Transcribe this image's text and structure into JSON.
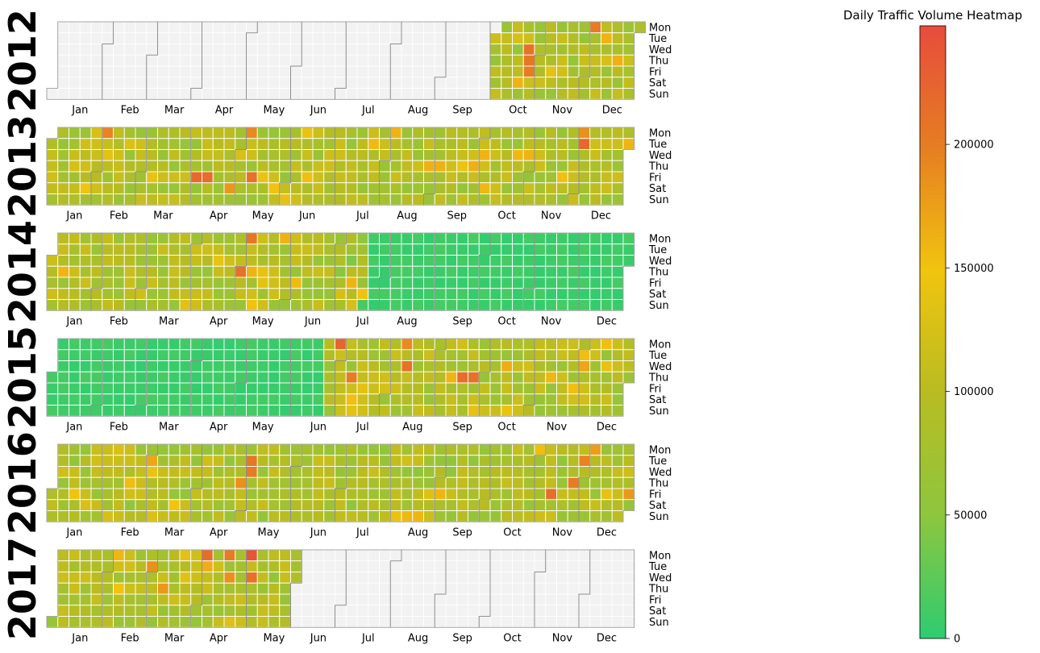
{
  "chart_data": {
    "type": "heatmap",
    "title": "Daily Traffic Volume Heatmap",
    "years": [
      "2012",
      "2013",
      "2014",
      "2015",
      "2016",
      "2017"
    ],
    "weekdays": [
      "Mon",
      "Tue",
      "Wed",
      "Thu",
      "Fri",
      "Sat",
      "Sun"
    ],
    "month_labels": [
      "Jan",
      "Feb",
      "Mar",
      "Apr",
      "May",
      "Jun",
      "Jul",
      "Aug",
      "Sep",
      "Oct",
      "Nov",
      "Dec"
    ],
    "data_range": {
      "first_date": "2012-10-02",
      "last_date": "2017-05-31"
    },
    "colorbar": {
      "min": 0,
      "max": 248000,
      "ticks": [
        0,
        50000,
        100000,
        150000,
        200000
      ],
      "colors": [
        "#2ecc71",
        "#8dc63f",
        "#b8bc22",
        "#f1c40f",
        "#e67e22",
        "#e74c3c"
      ]
    },
    "empty_cell_color": "#f2f2f2",
    "month_border_color": "#8c8c8c",
    "typical_values": {
      "2012_q4": 90000,
      "2013": 90000,
      "2014_jan_jun": 90000,
      "2014_jul_dec": 8000,
      "2015_jan_jun": 8000,
      "2015_jul_dec": 90000,
      "2016": 85000,
      "2017": 90000
    },
    "highlights": [
      {
        "date": "2012-12-03",
        "value": 200000
      },
      {
        "date": "2012-12-11",
        "value": 160000
      },
      {
        "date": "2012-10-24",
        "value": 210000
      },
      {
        "date": "2012-10-25",
        "value": 205000
      },
      {
        "date": "2012-10-26",
        "value": 200000
      },
      {
        "date": "2012-10-20",
        "value": 160000
      },
      {
        "date": "2013-02-04",
        "value": 195000
      },
      {
        "date": "2013-04-05",
        "value": 220000
      },
      {
        "date": "2013-04-12",
        "value": 215000
      },
      {
        "date": "2013-05-10",
        "value": 210000
      },
      {
        "date": "2013-05-06",
        "value": 190000
      },
      {
        "date": "2013-12-03",
        "value": 220000
      },
      {
        "date": "2013-12-02",
        "value": 185000
      },
      {
        "date": "2013-04-27",
        "value": 180000
      },
      {
        "date": "2013-05-25",
        "value": 150000
      },
      {
        "date": "2013-08-05",
        "value": 160000
      },
      {
        "date": "2014-05-05",
        "value": 205000
      },
      {
        "date": "2014-05-01",
        "value": 210000
      },
      {
        "date": "2014-05-08",
        "value": 160000
      },
      {
        "date": "2014-06-06",
        "value": 155000
      },
      {
        "date": "2014-07-11",
        "value": 160000
      },
      {
        "date": "2014-07-19",
        "value": 150000
      },
      {
        "date": "2015-06-29",
        "value": 225000
      },
      {
        "date": "2015-07-09",
        "value": 200000
      },
      {
        "date": "2015-08-10",
        "value": 190000
      },
      {
        "date": "2015-08-12",
        "value": 210000
      },
      {
        "date": "2015-09-17",
        "value": 215000
      },
      {
        "date": "2015-09-24",
        "value": 210000
      },
      {
        "date": "2015-09-10",
        "value": 160000
      },
      {
        "date": "2015-10-14",
        "value": 165000
      },
      {
        "date": "2015-12-02",
        "value": 170000
      },
      {
        "date": "2016-03-01",
        "value": 170000
      },
      {
        "date": "2016-04-28",
        "value": 185000
      },
      {
        "date": "2016-05-03",
        "value": 205000
      },
      {
        "date": "2016-05-04",
        "value": 200000
      },
      {
        "date": "2016-11-11",
        "value": 215000
      },
      {
        "date": "2016-11-24",
        "value": 200000
      },
      {
        "date": "2016-11-29",
        "value": 195000
      },
      {
        "date": "2016-12-30",
        "value": 180000
      },
      {
        "date": "2016-12-05",
        "value": 175000
      },
      {
        "date": "2017-04-03",
        "value": 215000
      },
      {
        "date": "2017-04-17",
        "value": 200000
      },
      {
        "date": "2017-05-01",
        "value": 240000
      },
      {
        "date": "2017-05-03",
        "value": 210000
      },
      {
        "date": "2017-02-28",
        "value": 185000
      },
      {
        "date": "2017-03-09",
        "value": 180000
      },
      {
        "date": "2017-04-19",
        "value": 185000
      }
    ]
  }
}
